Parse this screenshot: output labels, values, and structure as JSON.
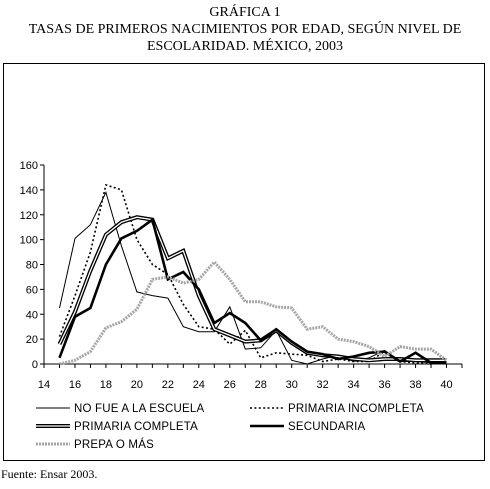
{
  "header": {
    "label": "GRÁFICA 1",
    "title_line1": "TASAS DE PRIMEROS NACIMIENTOS POR EDAD, SEGÚN NIVEL DE",
    "title_line2": "ESCOLARIDAD. MÉXICO, 2003"
  },
  "source": "Fuente: Ensar 2003.",
  "chart_data": {
    "type": "line",
    "title": "TASAS DE PRIMEROS NACIMIENTOS POR EDAD, SEGÚN NIVEL DE ESCOLARIDAD. MÉXICO, 2003",
    "xlabel": "",
    "ylabel": "",
    "xlim": [
      14,
      41
    ],
    "ylim": [
      0,
      160
    ],
    "x_ticks": [
      14,
      16,
      18,
      20,
      22,
      24,
      26,
      28,
      30,
      32,
      34,
      36,
      38,
      40
    ],
    "y_ticks": [
      0,
      20,
      40,
      60,
      80,
      100,
      120,
      140,
      160
    ],
    "grid": false,
    "legend_position": "bottom",
    "x": [
      15,
      16,
      17,
      18,
      19,
      20,
      21,
      22,
      23,
      24,
      25,
      26,
      27,
      28,
      29,
      30,
      31,
      32,
      33,
      34,
      35,
      36,
      37,
      38,
      39,
      40
    ],
    "series": [
      {
        "name": "NO FUE A LA ESCUELA",
        "style": "thin-solid",
        "color": "#000000",
        "values": [
          45,
          101,
          112,
          138,
          95,
          58,
          55,
          53,
          30,
          26,
          26,
          46,
          12,
          13,
          27,
          3,
          0,
          4,
          7,
          2,
          5,
          11,
          2,
          2,
          1,
          2
        ]
      },
      {
        "name": "PRIMARIA INCOMPLETA",
        "style": "dotted",
        "color": "#000000",
        "values": [
          22,
          55,
          90,
          144,
          140,
          100,
          80,
          72,
          48,
          30,
          28,
          16,
          27,
          5,
          9,
          8,
          7,
          2,
          4,
          2,
          2,
          10,
          2,
          1,
          0,
          3
        ]
      },
      {
        "name": "PRIMARIA COMPLETA",
        "style": "double-line",
        "color": "#000000",
        "values": [
          16,
          42,
          75,
          104,
          114,
          118,
          116,
          85,
          91,
          55,
          28,
          23,
          18,
          19,
          27,
          17,
          9,
          7,
          6,
          4,
          3,
          4,
          4,
          3,
          3,
          3
        ]
      },
      {
        "name": "SECUNDARIA",
        "style": "thick-solid",
        "color": "#000000",
        "values": [
          5,
          38,
          45,
          80,
          101,
          107,
          116,
          68,
          74,
          60,
          33,
          41,
          33,
          19,
          28,
          18,
          10,
          8,
          4,
          6,
          9,
          10,
          2,
          9,
          1,
          1
        ]
      },
      {
        "name": "PREPA O MÁS",
        "style": "gray-dashed",
        "color": "#a6a6a6",
        "values": [
          0,
          3,
          10,
          29,
          34,
          44,
          68,
          70,
          65,
          68,
          82,
          68,
          50,
          50,
          46,
          45,
          28,
          30,
          20,
          18,
          14,
          6,
          14,
          12,
          12,
          3
        ]
      }
    ]
  }
}
